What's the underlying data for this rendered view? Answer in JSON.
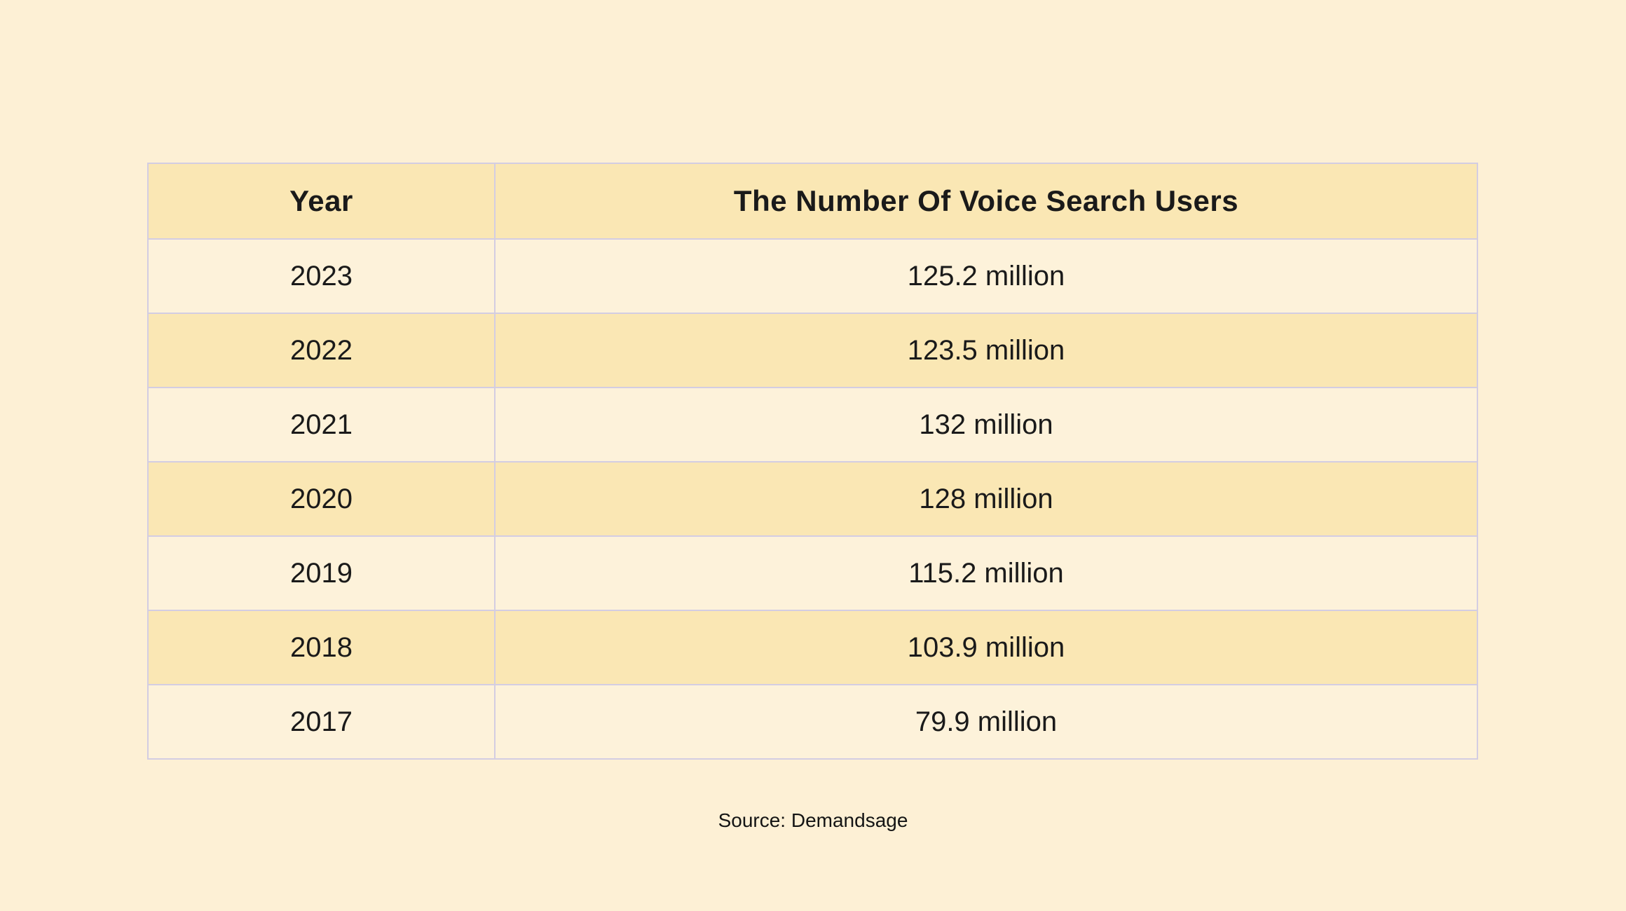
{
  "table": {
    "columns": [
      "Year",
      "The Number Of Voice Search Users"
    ],
    "rows": [
      {
        "year": "2023",
        "value": "125.2 million"
      },
      {
        "year": "2022",
        "value": "123.5 million"
      },
      {
        "year": "2021",
        "value": "132 million"
      },
      {
        "year": "2020",
        "value": "128 million"
      },
      {
        "year": "2019",
        "value": "115.2 million"
      },
      {
        "year": "2018",
        "value": "103.9 million"
      },
      {
        "year": "2017",
        "value": "79.9 million"
      }
    ]
  },
  "footer": {
    "source_label": "Source: Demandsage"
  },
  "colors": {
    "page_background": "#fdf0d5",
    "header_row_background": "#fae7b4",
    "even_row_background": "#fae7b4",
    "odd_row_background": "#fdf2da",
    "grid_line": "#d3cde2",
    "text": "#1a1a1a"
  },
  "chart_data": {
    "type": "table",
    "title": "The Number Of Voice Search Users",
    "columns": [
      "Year",
      "The Number Of Voice Search Users"
    ],
    "categories": [
      "2023",
      "2022",
      "2021",
      "2020",
      "2019",
      "2018",
      "2017"
    ],
    "values_millions": [
      125.2,
      123.5,
      132,
      128,
      115.2,
      103.9,
      79.9
    ],
    "unit": "million users",
    "source": "Source: Demandsage",
    "layout_hints": {
      "row_striping": true,
      "grid": true,
      "alignment": "center"
    }
  }
}
